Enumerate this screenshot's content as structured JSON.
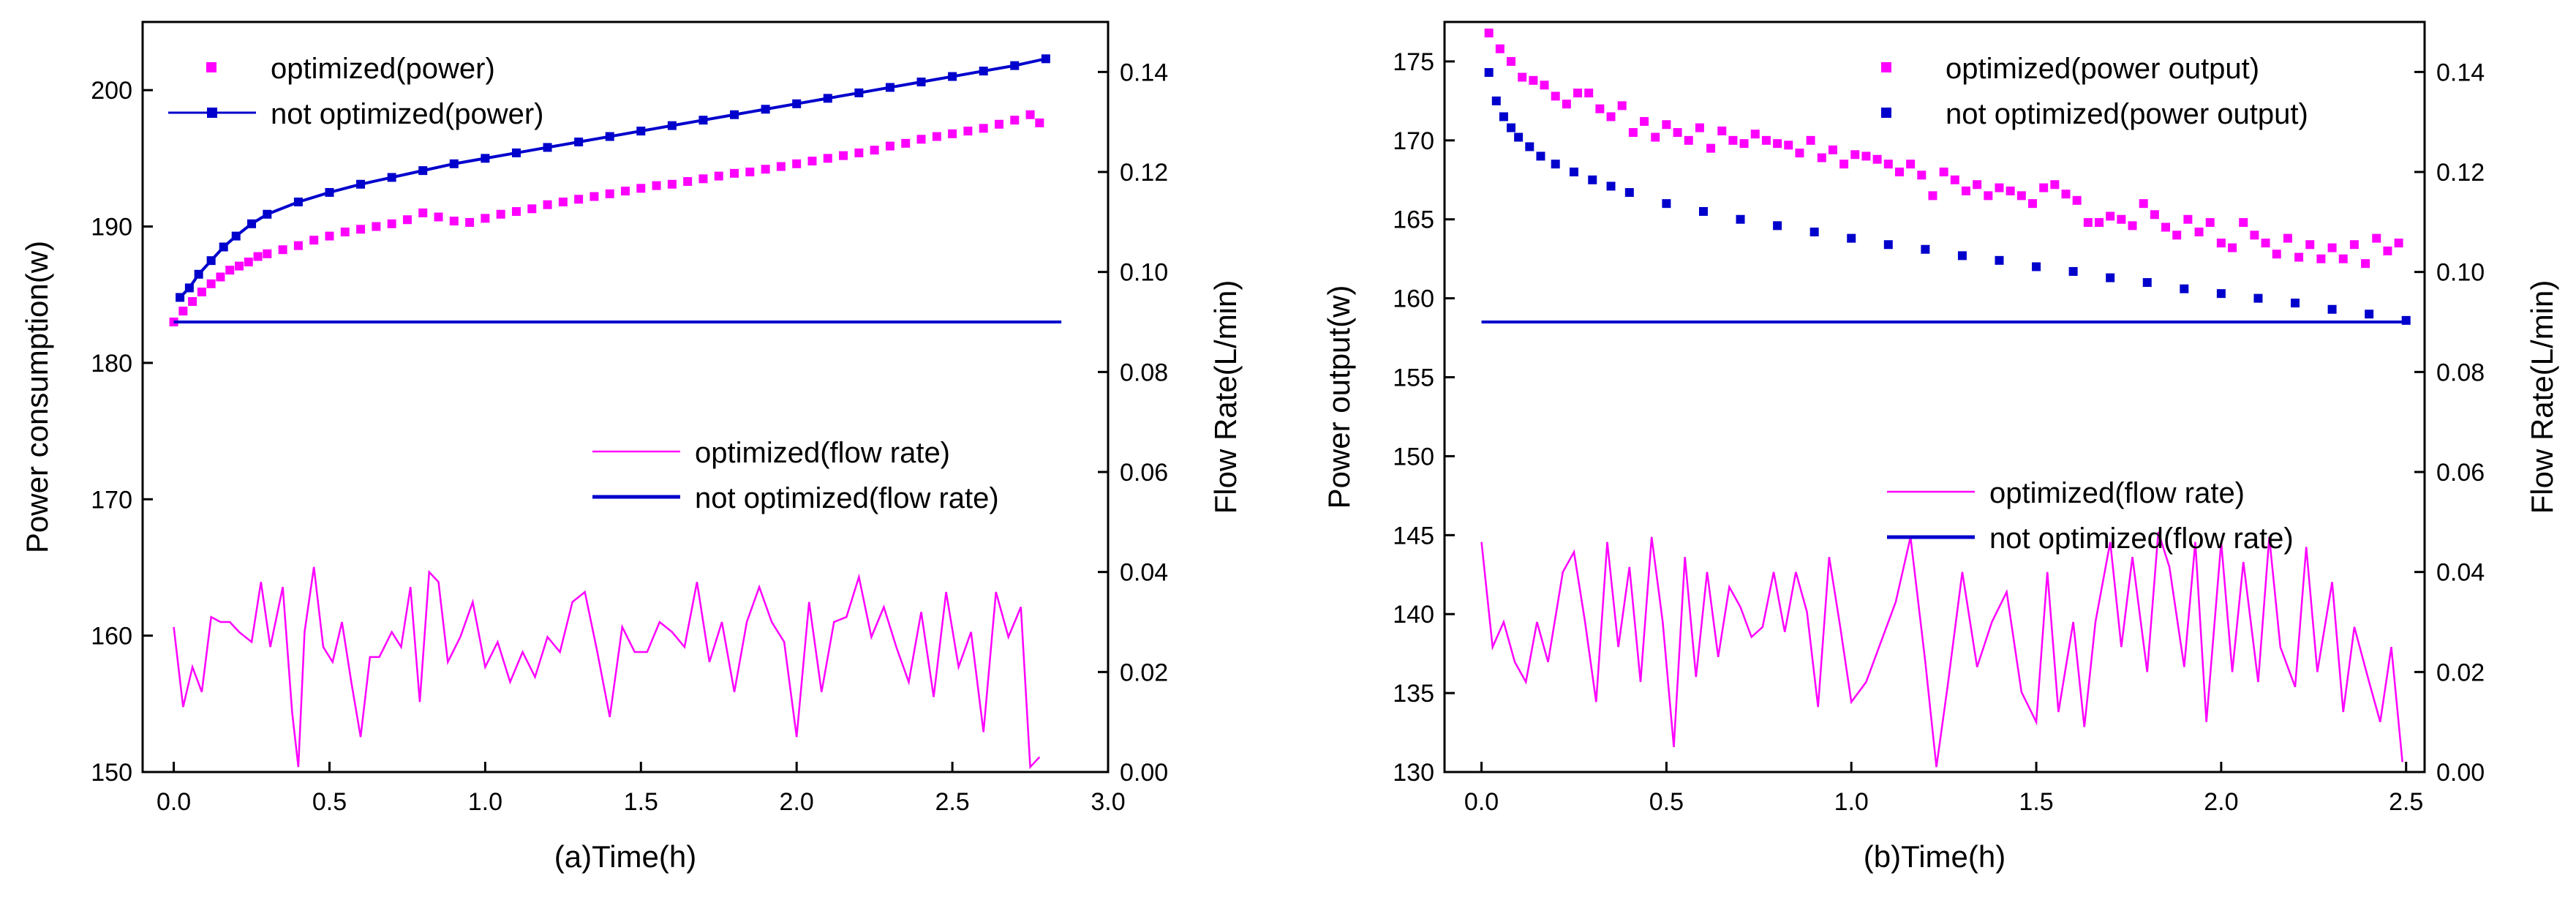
{
  "colors": {
    "optimized": "#ff00ff",
    "not_optimized": "#0000cc",
    "axis": "#000000"
  },
  "chart_data": [
    {
      "type": "line",
      "id": "panel-a",
      "xlabel": "(a)Time(h)",
      "ylabel_left": "Power consumption(w)",
      "ylabel_right": "Flow Rate(L/min)",
      "xlim": [
        -0.1,
        3.0
      ],
      "ylim_left": [
        150,
        205
      ],
      "ylim_right": [
        0.0,
        0.15
      ],
      "x_ticks": [
        "0.0",
        "0.5",
        "1.0",
        "1.5",
        "2.0",
        "2.5",
        "3.0"
      ],
      "x_tick_values": [
        0.0,
        0.5,
        1.0,
        1.5,
        2.0,
        2.5,
        3.0
      ],
      "y_left_ticks": [
        "150",
        "160",
        "170",
        "180",
        "190",
        "200"
      ],
      "y_left_tick_values": [
        150,
        160,
        170,
        180,
        190,
        200
      ],
      "y_right_ticks": [
        "0.00",
        "0.02",
        "0.04",
        "0.06",
        "0.08",
        "0.10",
        "0.12",
        "0.14"
      ],
      "y_right_tick_values": [
        0.0,
        0.02,
        0.04,
        0.06,
        0.08,
        0.1,
        0.12,
        0.14
      ],
      "legend_top": [
        {
          "label": "optimized(power)",
          "marker": "square",
          "color": "#ff00ff"
        },
        {
          "label": "not optimized(power)",
          "marker": "line-square",
          "color": "#0000cc"
        }
      ],
      "legend_bottom": [
        {
          "label": "optimized(flow rate)",
          "marker": "thin-line",
          "color": "#ff00ff"
        },
        {
          "label": "not optimized(flow rate)",
          "marker": "thick-line",
          "color": "#0000cc"
        }
      ],
      "series": [
        {
          "name": "optimized(power)",
          "axis": "left",
          "style": "markers",
          "color": "#ff00ff",
          "x": [
            0.0,
            0.03,
            0.06,
            0.09,
            0.12,
            0.15,
            0.18,
            0.21,
            0.24,
            0.27,
            0.3,
            0.35,
            0.4,
            0.45,
            0.5,
            0.55,
            0.6,
            0.65,
            0.7,
            0.75,
            0.8,
            0.85,
            0.9,
            0.95,
            1.0,
            1.05,
            1.1,
            1.15,
            1.2,
            1.25,
            1.3,
            1.35,
            1.4,
            1.45,
            1.5,
            1.55,
            1.6,
            1.65,
            1.7,
            1.75,
            1.8,
            1.85,
            1.9,
            1.95,
            2.0,
            2.05,
            2.1,
            2.15,
            2.2,
            2.25,
            2.3,
            2.35,
            2.4,
            2.45,
            2.5,
            2.55,
            2.6,
            2.65,
            2.7,
            2.75,
            2.78
          ],
          "y": [
            183.0,
            183.8,
            184.5,
            185.2,
            185.8,
            186.3,
            186.8,
            187.1,
            187.4,
            187.8,
            188.0,
            188.3,
            188.6,
            189.0,
            189.3,
            189.6,
            189.8,
            190.0,
            190.2,
            190.5,
            191.0,
            190.7,
            190.4,
            190.3,
            190.6,
            190.9,
            191.1,
            191.3,
            191.6,
            191.8,
            192.0,
            192.2,
            192.4,
            192.6,
            192.8,
            193.0,
            193.1,
            193.3,
            193.5,
            193.7,
            193.9,
            194.0,
            194.2,
            194.4,
            194.6,
            194.8,
            195.0,
            195.2,
            195.4,
            195.6,
            195.9,
            196.1,
            196.4,
            196.6,
            196.8,
            197.0,
            197.2,
            197.5,
            197.8,
            198.2,
            197.6
          ]
        },
        {
          "name": "not optimized(power)",
          "axis": "left",
          "style": "line-markers",
          "color": "#0000cc",
          "x": [
            0.02,
            0.05,
            0.08,
            0.12,
            0.16,
            0.2,
            0.25,
            0.3,
            0.4,
            0.5,
            0.6,
            0.7,
            0.8,
            0.9,
            1.0,
            1.1,
            1.2,
            1.3,
            1.4,
            1.5,
            1.6,
            1.7,
            1.8,
            1.9,
            2.0,
            2.1,
            2.2,
            2.3,
            2.4,
            2.5,
            2.6,
            2.7,
            2.8
          ],
          "y": [
            184.8,
            185.5,
            186.5,
            187.5,
            188.5,
            189.3,
            190.2,
            190.9,
            191.8,
            192.5,
            193.1,
            193.6,
            194.1,
            194.6,
            195.0,
            195.4,
            195.8,
            196.2,
            196.6,
            197.0,
            197.4,
            197.8,
            198.2,
            198.6,
            199.0,
            199.4,
            199.8,
            200.2,
            200.6,
            201.0,
            201.4,
            201.8,
            202.3
          ]
        },
        {
          "name": "optimized(flow rate)",
          "axis": "right",
          "style": "thin-line",
          "color": "#ff00ff",
          "x": [
            0.0,
            0.03,
            0.06,
            0.09,
            0.12,
            0.15,
            0.18,
            0.21,
            0.25,
            0.28,
            0.31,
            0.35,
            0.38,
            0.4,
            0.42,
            0.45,
            0.48,
            0.51,
            0.54,
            0.57,
            0.6,
            0.63,
            0.66,
            0.7,
            0.73,
            0.76,
            0.79,
            0.82,
            0.85,
            0.88,
            0.92,
            0.96,
            1.0,
            1.04,
            1.08,
            1.12,
            1.16,
            1.2,
            1.24,
            1.28,
            1.32,
            1.36,
            1.4,
            1.44,
            1.48,
            1.52,
            1.56,
            1.6,
            1.64,
            1.68,
            1.72,
            1.76,
            1.8,
            1.84,
            1.88,
            1.92,
            1.96,
            2.0,
            2.04,
            2.08,
            2.12,
            2.16,
            2.2,
            2.24,
            2.28,
            2.32,
            2.36,
            2.4,
            2.44,
            2.48,
            2.52,
            2.56,
            2.6,
            2.64,
            2.68,
            2.72,
            2.75,
            2.78
          ],
          "y": [
            0.029,
            0.013,
            0.021,
            0.016,
            0.031,
            0.03,
            0.03,
            0.028,
            0.026,
            0.038,
            0.025,
            0.037,
            0.012,
            0.001,
            0.028,
            0.041,
            0.025,
            0.022,
            0.03,
            0.018,
            0.007,
            0.023,
            0.023,
            0.028,
            0.025,
            0.037,
            0.014,
            0.04,
            0.038,
            0.022,
            0.027,
            0.034,
            0.021,
            0.026,
            0.018,
            0.024,
            0.019,
            0.027,
            0.024,
            0.034,
            0.036,
            0.024,
            0.011,
            0.029,
            0.024,
            0.024,
            0.03,
            0.028,
            0.025,
            0.038,
            0.022,
            0.03,
            0.016,
            0.03,
            0.037,
            0.03,
            0.026,
            0.007,
            0.034,
            0.016,
            0.03,
            0.031,
            0.039,
            0.027,
            0.033,
            0.025,
            0.018,
            0.032,
            0.015,
            0.036,
            0.021,
            0.028,
            0.008,
            0.036,
            0.027,
            0.033,
            0.001,
            0.003
          ]
        },
        {
          "name": "not optimized(flow rate)",
          "axis": "right",
          "style": "thick-line",
          "color": "#0000cc",
          "x": [
            0.0,
            2.85
          ],
          "y": [
            0.09,
            0.09
          ]
        }
      ]
    },
    {
      "type": "line",
      "id": "panel-b",
      "xlabel": "(b)Time(h)",
      "ylabel_left": "Power output(w)",
      "ylabel_right": "Flow Rate(L/min)",
      "xlim": [
        -0.1,
        2.55
      ],
      "ylim_left": [
        130,
        177.5
      ],
      "ylim_right": [
        0.0,
        0.15
      ],
      "x_ticks": [
        "0.0",
        "0.5",
        "1.0",
        "1.5",
        "2.0",
        "2.5"
      ],
      "x_tick_values": [
        0.0,
        0.5,
        1.0,
        1.5,
        2.0,
        2.5
      ],
      "y_left_ticks": [
        "130",
        "135",
        "140",
        "145",
        "150",
        "155",
        "160",
        "165",
        "170",
        "175"
      ],
      "y_left_tick_values": [
        130,
        135,
        140,
        145,
        150,
        155,
        160,
        165,
        170,
        175
      ],
      "y_right_ticks": [
        "0.00",
        "0.02",
        "0.04",
        "0.06",
        "0.08",
        "0.10",
        "0.12",
        "0.14"
      ],
      "y_right_tick_values": [
        0.0,
        0.02,
        0.04,
        0.06,
        0.08,
        0.1,
        0.12,
        0.14
      ],
      "legend_top": [
        {
          "label": "optimized(power output)",
          "marker": "square",
          "color": "#ff00ff"
        },
        {
          "label": "not optimized(power output)",
          "marker": "square",
          "color": "#0000cc"
        }
      ],
      "legend_bottom": [
        {
          "label": "optimized(flow rate)",
          "marker": "thin-line",
          "color": "#ff00ff"
        },
        {
          "label": "not optimized(flow rate)",
          "marker": "thick-line",
          "color": "#0000cc"
        }
      ],
      "series": [
        {
          "name": "optimized(power output)",
          "axis": "left",
          "style": "markers",
          "color": "#ff00ff",
          "x": [
            0.02,
            0.05,
            0.08,
            0.11,
            0.14,
            0.17,
            0.2,
            0.23,
            0.26,
            0.29,
            0.32,
            0.35,
            0.38,
            0.41,
            0.44,
            0.47,
            0.5,
            0.53,
            0.56,
            0.59,
            0.62,
            0.65,
            0.68,
            0.71,
            0.74,
            0.77,
            0.8,
            0.83,
            0.86,
            0.89,
            0.92,
            0.95,
            0.98,
            1.01,
            1.04,
            1.07,
            1.1,
            1.13,
            1.16,
            1.19,
            1.22,
            1.25,
            1.28,
            1.31,
            1.34,
            1.37,
            1.4,
            1.43,
            1.46,
            1.49,
            1.52,
            1.55,
            1.58,
            1.61,
            1.64,
            1.67,
            1.7,
            1.73,
            1.76,
            1.79,
            1.82,
            1.85,
            1.88,
            1.91,
            1.94,
            1.97,
            2.0,
            2.03,
            2.06,
            2.09,
            2.12,
            2.15,
            2.18,
            2.21,
            2.24,
            2.27,
            2.3,
            2.33,
            2.36,
            2.39,
            2.42,
            2.45,
            2.48
          ],
          "y": [
            176.8,
            175.8,
            175.0,
            174.0,
            173.8,
            173.5,
            172.8,
            172.3,
            173.0,
            173.0,
            172.0,
            171.5,
            172.2,
            170.5,
            171.2,
            170.2,
            171.0,
            170.5,
            170.0,
            170.8,
            169.5,
            170.6,
            170.0,
            169.8,
            170.4,
            170.0,
            169.8,
            169.7,
            169.2,
            170.0,
            168.9,
            169.4,
            168.5,
            169.1,
            169.0,
            168.8,
            168.5,
            168.0,
            168.5,
            167.8,
            166.5,
            168.0,
            167.5,
            166.8,
            167.2,
            166.5,
            167.0,
            166.8,
            166.5,
            166.0,
            167.0,
            167.2,
            166.6,
            166.2,
            164.8,
            164.8,
            165.2,
            165.0,
            164.6,
            166.0,
            165.3,
            164.5,
            164.0,
            165.0,
            164.2,
            164.8,
            163.5,
            163.2,
            164.8,
            164.0,
            163.5,
            162.8,
            163.8,
            162.6,
            163.4,
            162.5,
            163.2,
            162.5,
            163.4,
            162.2,
            163.8,
            163.0,
            163.5
          ]
        },
        {
          "name": "not optimized(power output)",
          "axis": "left",
          "style": "markers",
          "color": "#0000cc",
          "x": [
            0.02,
            0.04,
            0.06,
            0.08,
            0.1,
            0.13,
            0.16,
            0.2,
            0.25,
            0.3,
            0.35,
            0.4,
            0.5,
            0.6,
            0.7,
            0.8,
            0.9,
            1.0,
            1.1,
            1.2,
            1.3,
            1.4,
            1.5,
            1.6,
            1.7,
            1.8,
            1.9,
            2.0,
            2.1,
            2.2,
            2.3,
            2.4,
            2.5
          ],
          "y": [
            174.3,
            172.5,
            171.5,
            170.8,
            170.2,
            169.6,
            169.0,
            168.5,
            168.0,
            167.5,
            167.1,
            166.7,
            166.0,
            165.5,
            165.0,
            164.6,
            164.2,
            163.8,
            163.4,
            163.1,
            162.7,
            162.4,
            162.0,
            161.7,
            161.3,
            161.0,
            160.6,
            160.3,
            160.0,
            159.7,
            159.3,
            159.0,
            158.6
          ]
        },
        {
          "name": "optimized(flow rate)",
          "axis": "right",
          "style": "thin-line",
          "color": "#ff00ff",
          "x": [
            0.0,
            0.03,
            0.06,
            0.09,
            0.12,
            0.15,
            0.18,
            0.22,
            0.25,
            0.28,
            0.31,
            0.34,
            0.37,
            0.4,
            0.43,
            0.46,
            0.49,
            0.52,
            0.55,
            0.58,
            0.61,
            0.64,
            0.67,
            0.7,
            0.73,
            0.76,
            0.79,
            0.82,
            0.85,
            0.88,
            0.91,
            0.94,
            0.97,
            1.0,
            1.04,
            1.08,
            1.12,
            1.16,
            1.2,
            1.23,
            1.26,
            1.3,
            1.34,
            1.38,
            1.42,
            1.46,
            1.5,
            1.53,
            1.56,
            1.6,
            1.63,
            1.66,
            1.7,
            1.73,
            1.76,
            1.8,
            1.83,
            1.86,
            1.9,
            1.93,
            1.96,
            2.0,
            2.03,
            2.06,
            2.1,
            2.13,
            2.16,
            2.2,
            2.23,
            2.26,
            2.3,
            2.33,
            2.36,
            2.4,
            2.43,
            2.46,
            2.49
          ],
          "y": [
            0.046,
            0.025,
            0.03,
            0.022,
            0.018,
            0.03,
            0.022,
            0.04,
            0.044,
            0.03,
            0.014,
            0.046,
            0.025,
            0.041,
            0.018,
            0.047,
            0.03,
            0.005,
            0.043,
            0.019,
            0.04,
            0.023,
            0.037,
            0.033,
            0.027,
            0.029,
            0.04,
            0.028,
            0.04,
            0.032,
            0.013,
            0.043,
            0.029,
            0.014,
            0.018,
            0.026,
            0.034,
            0.047,
            0.022,
            0.001,
            0.017,
            0.04,
            0.021,
            0.03,
            0.036,
            0.016,
            0.01,
            0.04,
            0.012,
            0.03,
            0.009,
            0.03,
            0.046,
            0.025,
            0.043,
            0.02,
            0.048,
            0.041,
            0.021,
            0.046,
            0.01,
            0.046,
            0.02,
            0.042,
            0.018,
            0.047,
            0.025,
            0.017,
            0.045,
            0.02,
            0.038,
            0.012,
            0.029,
            0.018,
            0.01,
            0.025,
            0.002
          ]
        },
        {
          "name": "not optimized(flow rate)",
          "axis": "right",
          "style": "thick-line",
          "color": "#0000cc",
          "x": [
            0.0,
            2.5
          ],
          "y": [
            0.09,
            0.09
          ]
        }
      ]
    }
  ]
}
